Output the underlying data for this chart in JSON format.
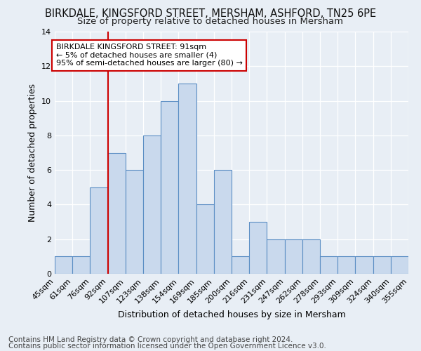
{
  "title_line1": "BIRKDALE, KINGSFORD STREET, MERSHAM, ASHFORD, TN25 6PE",
  "title_line2": "Size of property relative to detached houses in Mersham",
  "xlabel": "Distribution of detached houses by size in Mersham",
  "ylabel": "Number of detached properties",
  "footer_line1": "Contains HM Land Registry data © Crown copyright and database right 2024.",
  "footer_line2": "Contains public sector information licensed under the Open Government Licence v3.0.",
  "bin_labels": [
    "45sqm",
    "61sqm",
    "76sqm",
    "92sqm",
    "107sqm",
    "123sqm",
    "138sqm",
    "154sqm",
    "169sqm",
    "185sqm",
    "200sqm",
    "216sqm",
    "231sqm",
    "247sqm",
    "262sqm",
    "278sqm",
    "293sqm",
    "309sqm",
    "324sqm",
    "340sqm",
    "355sqm"
  ],
  "bar_heights": [
    1,
    1,
    5,
    7,
    6,
    8,
    10,
    11,
    4,
    6,
    1,
    3,
    2,
    2,
    2,
    1,
    1,
    1,
    1,
    1
  ],
  "bar_color": "#c9d9ed",
  "bar_edge_color": "#5b8ec4",
  "vline_color": "#cc0000",
  "annotation_text": "BIRKDALE KINGSFORD STREET: 91sqm\n← 5% of detached houses are smaller (4)\n95% of semi-detached houses are larger (80) →",
  "annotation_box_color": "#ffffff",
  "annotation_border_color": "#cc0000",
  "ylim": [
    0,
    14
  ],
  "yticks": [
    0,
    2,
    4,
    6,
    8,
    10,
    12,
    14
  ],
  "background_color": "#e8eef5",
  "grid_color": "#ffffff",
  "title_fontsize": 10.5,
  "subtitle_fontsize": 9.5,
  "axis_label_fontsize": 9,
  "tick_fontsize": 8,
  "footer_fontsize": 7.5,
  "annot_fontsize": 8
}
